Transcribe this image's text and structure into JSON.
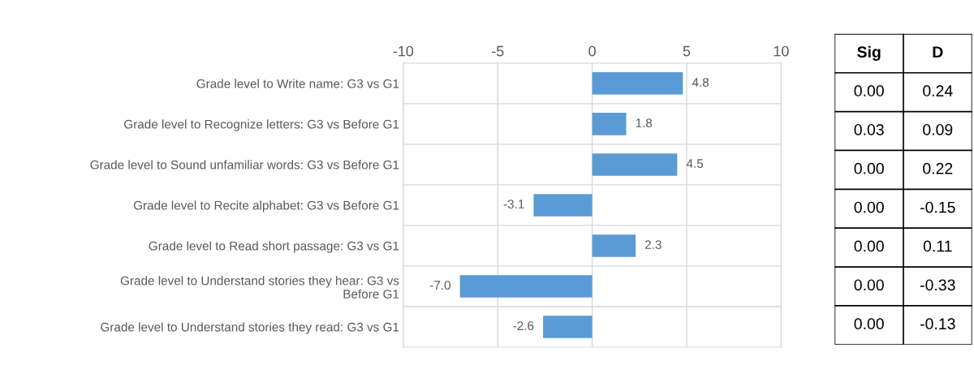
{
  "chart_data": [
    {
      "type": "bar",
      "orientation": "horizontal",
      "categories": [
        "Grade level to Write name: G3 vs G1",
        "Grade level to Recognize letters: G3 vs Before G1",
        "Grade level to Sound unfamiliar words: G3 vs Before G1",
        "Grade level to Recite alphabet: G3 vs Before G1",
        "Grade level to Read short passage: G3 vs G1",
        "Grade level to Understand stories they hear: G3 vs\nBefore G1",
        "Grade level to Understand stories they read: G3 vs G1"
      ],
      "values": [
        4.8,
        1.8,
        4.5,
        -3.1,
        2.3,
        -7.0,
        -2.6
      ],
      "value_labels": [
        "4.8",
        "1.8",
        "4.5",
        "-3.1",
        "2.3",
        "-7.0",
        "-2.6"
      ],
      "color": "#5b9bd5",
      "xlim": [
        -10,
        10
      ],
      "xticks": [
        {
          "value": -10,
          "label": "-10"
        },
        {
          "value": -5,
          "label": "-5"
        },
        0,
        5,
        10
      ],
      "grid": true
    },
    {
      "type": "other",
      "categories": [
        "Sig",
        "D"
      ],
      "annotations": [
        "0.00",
        "0.24",
        "0.03",
        "0.09",
        "0.00",
        "0.22",
        "0.00",
        "-0.15",
        "0.00",
        "0.11",
        "0.00",
        "-0.33",
        "0.00",
        "-0.13"
      ]
    }
  ]
}
